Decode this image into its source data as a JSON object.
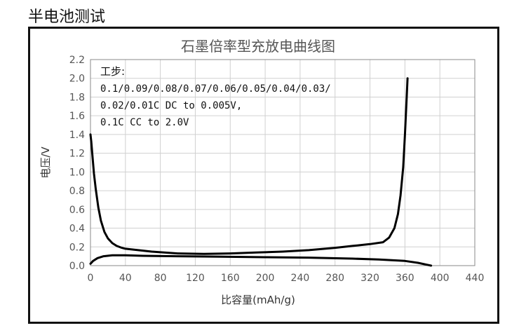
{
  "page": {
    "title": "半电池测试"
  },
  "chart_data": {
    "type": "line",
    "title": "石墨倍率型充放电曲线图",
    "xlabel": "比容量(mAh/g)",
    "ylabel": "电压/V",
    "xlim": [
      0,
      440
    ],
    "ylim": [
      0,
      2.2
    ],
    "xticks": [
      "0",
      "40",
      "80",
      "120",
      "160",
      "200",
      "240",
      "280",
      "320",
      "360",
      "400",
      "440"
    ],
    "yticks": [
      "0.0",
      "0.2",
      "0.4",
      "0.6",
      "0.8",
      "1.0",
      "1.2",
      "1.4",
      "1.6",
      "1.8",
      "2.0",
      "2.2"
    ],
    "grid": true,
    "annotation": [
      "工步:",
      "0.1/0.09/0.08/0.07/0.06/0.05/0.04/0.03/",
      "0.02/0.01C DC to 0.005V,",
      "0.1C CC to 2.0V"
    ],
    "series": [
      {
        "color": "#000000",
        "x": [
          0,
          1,
          2,
          4,
          6,
          9,
          12,
          16,
          20,
          25,
          30,
          36,
          40,
          50,
          70,
          100,
          130,
          160,
          190,
          220,
          250,
          280,
          300,
          320,
          335,
          342,
          348,
          352,
          355,
          358,
          360,
          362,
          363
        ],
        "y": [
          1.4,
          1.32,
          1.2,
          0.98,
          0.82,
          0.62,
          0.48,
          0.36,
          0.29,
          0.24,
          0.21,
          0.19,
          0.18,
          0.17,
          0.15,
          0.13,
          0.125,
          0.13,
          0.14,
          0.15,
          0.165,
          0.19,
          0.21,
          0.23,
          0.25,
          0.3,
          0.4,
          0.55,
          0.75,
          1.05,
          1.4,
          1.8,
          2.0
        ]
      },
      {
        "color": "#000000",
        "x": [
          0,
          3,
          8,
          15,
          25,
          40,
          60,
          100,
          150,
          200,
          250,
          300,
          330,
          360,
          375,
          385,
          390
        ],
        "y": [
          0.02,
          0.05,
          0.08,
          0.1,
          0.11,
          0.11,
          0.105,
          0.1,
          0.095,
          0.09,
          0.085,
          0.075,
          0.065,
          0.05,
          0.03,
          0.01,
          0.0
        ]
      }
    ]
  }
}
